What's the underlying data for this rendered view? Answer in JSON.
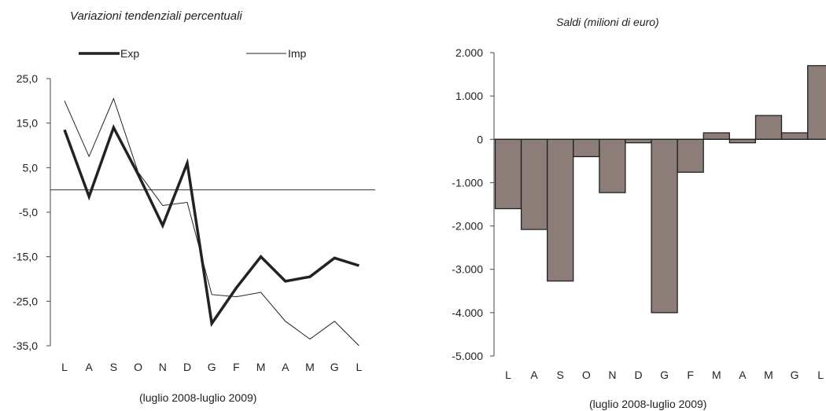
{
  "chart_data": [
    {
      "type": "line",
      "title": "Variazioni tendenziali percentuali",
      "caption": "(luglio 2008-luglio 2009)",
      "categories": [
        "L",
        "A",
        "S",
        "O",
        "N",
        "D",
        "G",
        "F",
        "M",
        "A",
        "M",
        "G",
        "L"
      ],
      "series": [
        {
          "name": "Exp",
          "values": [
            13.5,
            -1.5,
            14.0,
            3.5,
            -8.0,
            6.0,
            -30.0,
            -22.0,
            -15.0,
            -20.5,
            -19.5,
            -15.3,
            -17.0
          ],
          "color": "#222222"
        },
        {
          "name": "Imp",
          "values": [
            20.0,
            7.5,
            20.5,
            4.0,
            -3.5,
            -2.8,
            -23.5,
            -24.0,
            -23.0,
            -29.5,
            -33.5,
            -29.5,
            -35.0
          ],
          "color": "#222222"
        }
      ],
      "ylim": [
        -35,
        25
      ],
      "yticks": [
        25,
        15,
        5,
        -5,
        -15,
        -25,
        -35
      ],
      "ytick_labels": [
        "25,0",
        "15,0",
        "5,0",
        "-5,0",
        "-15,0",
        "-25,0",
        "-35,0"
      ],
      "reference_line": 0,
      "legend_position": "top",
      "grid": false
    },
    {
      "type": "bar",
      "title": "Saldi (milioni di euro)",
      "caption": "(luglio 2008-luglio 2009)",
      "categories": [
        "L",
        "A",
        "S",
        "O",
        "N",
        "D",
        "G",
        "F",
        "M",
        "A",
        "M",
        "G",
        "L"
      ],
      "values": [
        -1600,
        -2080,
        -3270,
        -400,
        -1230,
        -80,
        -4000,
        -760,
        150,
        -80,
        550,
        150,
        1700
      ],
      "bar_color": "#8c7d78",
      "ylim": [
        -5000,
        2000
      ],
      "yticks": [
        2000,
        1000,
        0,
        -1000,
        -2000,
        -3000,
        -4000,
        -5000
      ],
      "ytick_labels": [
        "2.000",
        "1.000",
        "0",
        "-1.000",
        "-2.000",
        "-3.000",
        "-4.000",
        "-5.000"
      ],
      "grid": false
    }
  ]
}
